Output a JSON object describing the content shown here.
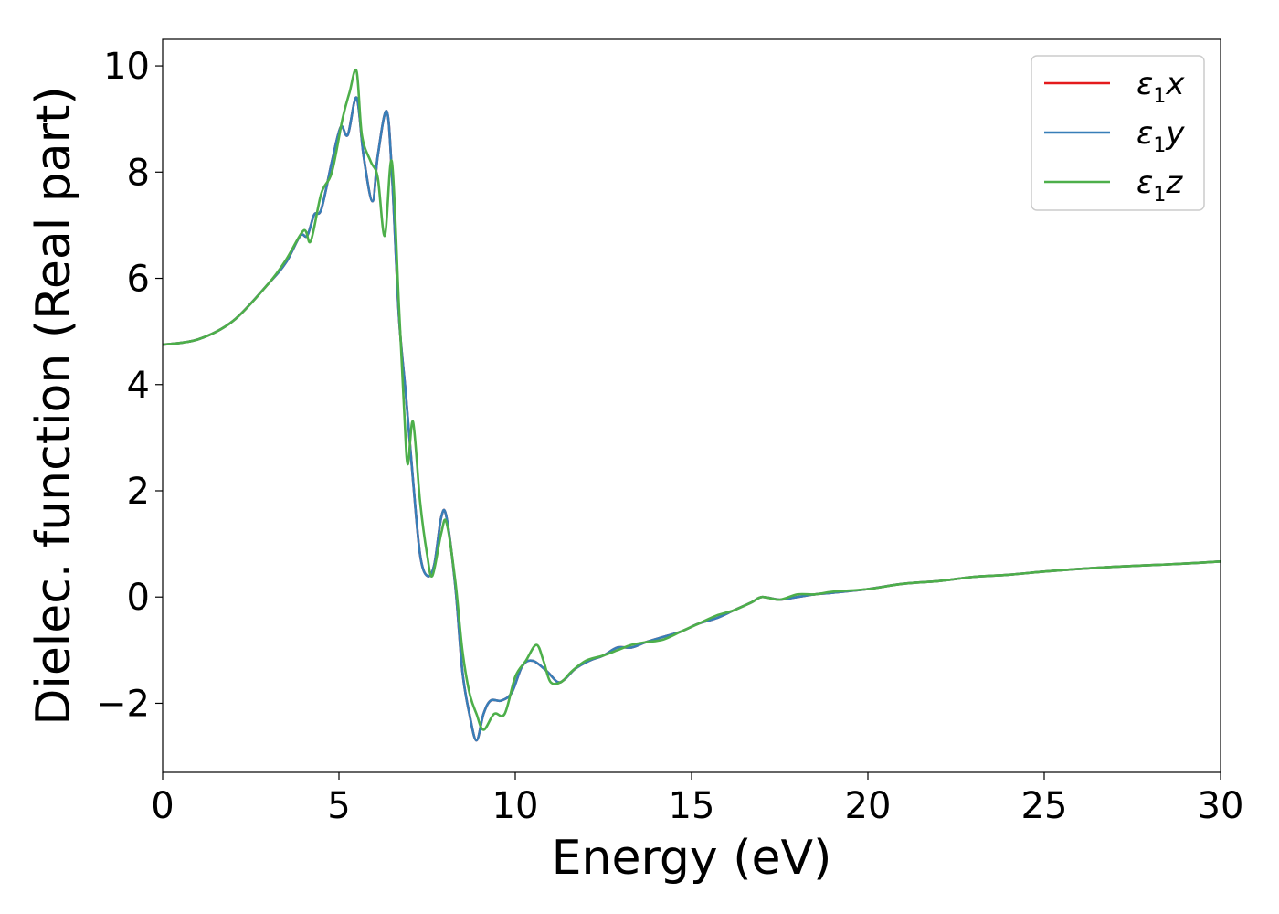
{
  "chart_data": {
    "type": "line",
    "title": "",
    "xlabel": "Energy (eV)",
    "ylabel": "Dielec. function (Real part)",
    "xlim": [
      0,
      30
    ],
    "ylim": [
      -3.3,
      10.5
    ],
    "xticks": [
      0,
      5,
      10,
      15,
      20,
      25,
      30
    ],
    "xtick_labels": [
      "0",
      "5",
      "10",
      "15",
      "20",
      "25",
      "30"
    ],
    "yticks": [
      -2,
      0,
      2,
      4,
      6,
      8,
      10
    ],
    "ytick_labels": [
      "−2",
      "0",
      "2",
      "4",
      "6",
      "8",
      "10"
    ],
    "grid": false,
    "legend_position": "top-right",
    "series": [
      {
        "name": "ε₁x",
        "legend_main": "ε",
        "legend_sub": "1",
        "legend_var": "x",
        "color": "#e41a1c",
        "x": [
          0,
          1,
          2,
          3,
          3.5,
          3.9,
          4.1,
          4.3,
          4.5,
          4.8,
          5.05,
          5.25,
          5.5,
          5.7,
          5.95,
          6.1,
          6.35,
          6.5,
          6.7,
          6.9,
          7.1,
          7.3,
          7.5,
          7.7,
          7.9,
          8.05,
          8.3,
          8.5,
          8.7,
          8.9,
          9.1,
          9.3,
          9.6,
          9.9,
          10.2,
          10.5,
          10.9,
          11.2,
          11.4,
          11.7,
          12.1,
          12.5,
          12.9,
          13.3,
          13.7,
          14.2,
          14.7,
          15.2,
          15.7,
          16.2,
          16.7,
          17.0,
          17.5,
          18.0,
          18.5,
          19.0,
          20,
          21,
          22,
          23,
          24,
          25,
          26,
          27,
          28,
          29,
          30
        ],
        "y": [
          4.75,
          4.85,
          5.2,
          5.9,
          6.3,
          6.8,
          6.8,
          7.2,
          7.3,
          8.2,
          8.85,
          8.7,
          9.4,
          8.3,
          7.45,
          8.3,
          9.15,
          8.0,
          5.3,
          3.8,
          2.2,
          0.8,
          0.4,
          0.6,
          1.5,
          1.5,
          0.2,
          -1.4,
          -2.2,
          -2.7,
          -2.2,
          -1.95,
          -1.95,
          -1.8,
          -1.3,
          -1.2,
          -1.4,
          -1.6,
          -1.55,
          -1.35,
          -1.2,
          -1.1,
          -0.95,
          -0.95,
          -0.85,
          -0.75,
          -0.65,
          -0.5,
          -0.4,
          -0.25,
          -0.1,
          0.0,
          -0.05,
          0.0,
          0.05,
          0.08,
          0.15,
          0.25,
          0.3,
          0.38,
          0.42,
          0.48,
          0.53,
          0.57,
          0.6,
          0.63,
          0.67
        ]
      },
      {
        "name": "ε₁y",
        "legend_main": "ε",
        "legend_sub": "1",
        "legend_var": "y",
        "color": "#377eb8",
        "x": [
          0,
          1,
          2,
          3,
          3.5,
          3.9,
          4.1,
          4.3,
          4.5,
          4.8,
          5.05,
          5.25,
          5.5,
          5.7,
          5.95,
          6.1,
          6.35,
          6.5,
          6.7,
          6.9,
          7.1,
          7.3,
          7.5,
          7.7,
          7.9,
          8.05,
          8.3,
          8.5,
          8.7,
          8.9,
          9.1,
          9.3,
          9.6,
          9.9,
          10.2,
          10.5,
          10.9,
          11.2,
          11.4,
          11.7,
          12.1,
          12.5,
          12.9,
          13.3,
          13.7,
          14.2,
          14.7,
          15.2,
          15.7,
          16.2,
          16.7,
          17.0,
          17.5,
          18.0,
          18.5,
          19.0,
          20,
          21,
          22,
          23,
          24,
          25,
          26,
          27,
          28,
          29,
          30
        ],
        "y": [
          4.75,
          4.85,
          5.2,
          5.9,
          6.3,
          6.8,
          6.8,
          7.2,
          7.3,
          8.2,
          8.85,
          8.7,
          9.4,
          8.3,
          7.45,
          8.3,
          9.15,
          8.0,
          5.3,
          3.8,
          2.2,
          0.8,
          0.4,
          0.6,
          1.5,
          1.5,
          0.2,
          -1.4,
          -2.2,
          -2.7,
          -2.2,
          -1.95,
          -1.95,
          -1.8,
          -1.3,
          -1.2,
          -1.4,
          -1.6,
          -1.55,
          -1.35,
          -1.2,
          -1.1,
          -0.95,
          -0.95,
          -0.85,
          -0.75,
          -0.65,
          -0.5,
          -0.4,
          -0.25,
          -0.1,
          0.0,
          -0.05,
          0.0,
          0.05,
          0.08,
          0.15,
          0.25,
          0.3,
          0.38,
          0.42,
          0.48,
          0.53,
          0.57,
          0.6,
          0.63,
          0.67
        ]
      },
      {
        "name": "ε₁z",
        "legend_main": "ε",
        "legend_sub": "1",
        "legend_var": "z",
        "color": "#4daf4a",
        "x": [
          0,
          1,
          2,
          3,
          3.5,
          4.0,
          4.2,
          4.5,
          4.8,
          5.1,
          5.3,
          5.5,
          5.65,
          5.9,
          6.1,
          6.3,
          6.5,
          6.7,
          6.85,
          6.95,
          7.1,
          7.3,
          7.5,
          7.65,
          7.9,
          8.05,
          8.3,
          8.5,
          8.7,
          8.9,
          9.1,
          9.4,
          9.7,
          10.0,
          10.3,
          10.6,
          10.8,
          11.0,
          11.3,
          11.6,
          12.0,
          12.5,
          12.9,
          13.3,
          13.7,
          14.2,
          14.7,
          15.2,
          15.7,
          16.2,
          16.7,
          17.0,
          17.5,
          18.0,
          18.5,
          19.0,
          20,
          21,
          22,
          23,
          24,
          25,
          26,
          27,
          28,
          29,
          30
        ],
        "y": [
          4.75,
          4.85,
          5.2,
          5.9,
          6.35,
          6.9,
          6.7,
          7.6,
          8.0,
          9.0,
          9.5,
          9.9,
          8.7,
          8.2,
          7.9,
          6.8,
          8.2,
          5.5,
          3.5,
          2.5,
          3.3,
          1.8,
          0.8,
          0.4,
          1.2,
          1.4,
          0.3,
          -1.0,
          -1.8,
          -2.2,
          -2.5,
          -2.2,
          -2.2,
          -1.5,
          -1.2,
          -0.9,
          -1.2,
          -1.6,
          -1.6,
          -1.4,
          -1.2,
          -1.1,
          -1.0,
          -0.9,
          -0.85,
          -0.8,
          -0.65,
          -0.5,
          -0.35,
          -0.25,
          -0.1,
          0.0,
          -0.05,
          0.05,
          0.05,
          0.1,
          0.15,
          0.25,
          0.3,
          0.38,
          0.42,
          0.48,
          0.53,
          0.57,
          0.6,
          0.63,
          0.67
        ]
      }
    ]
  }
}
